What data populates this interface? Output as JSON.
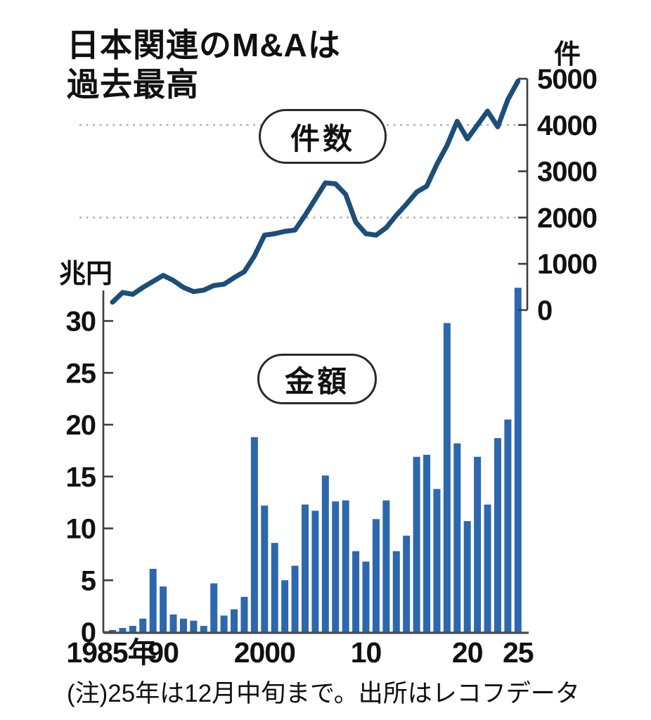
{
  "title": {
    "line1": "日本関連のM&Aは",
    "line2": "過去最高"
  },
  "series": {
    "count_label": "件数",
    "amount_label": "金額"
  },
  "note": "(注)25年は12月中旬まで。出所はレコフデータ",
  "line_axis": {
    "unit": "件",
    "ticks": [
      5000,
      4000,
      3000,
      2000,
      1000,
      0
    ],
    "gridlines": [
      4000,
      2000
    ],
    "max": 5000
  },
  "bar_axis": {
    "unit": "兆円",
    "ticks": [
      30,
      25,
      20,
      15,
      10,
      5,
      0
    ],
    "max": 33.5
  },
  "x_axis": {
    "ticks": [
      {
        "label": "1985年",
        "year": 1985
      },
      {
        "label": "90",
        "year": 1990
      },
      {
        "label": "2000",
        "year": 2000
      },
      {
        "label": "10",
        "year": 2010
      },
      {
        "label": "20",
        "year": 2020
      },
      {
        "label": "25",
        "year": 2025
      }
    ]
  },
  "colors": {
    "bar": "#2d67ad",
    "line": "#1c4e78",
    "axis": "#3d3d3d",
    "baseline": "#4a4a4a",
    "grid": "#b3b3b3",
    "text": "#111111"
  },
  "chart_data": {
    "type": "combo",
    "title": "日本関連のM&Aは過去最高",
    "x": [
      1985,
      1986,
      1987,
      1988,
      1989,
      1990,
      1991,
      1992,
      1993,
      1994,
      1995,
      1996,
      1997,
      1998,
      1999,
      2000,
      2001,
      2002,
      2003,
      2004,
      2005,
      2006,
      2007,
      2008,
      2009,
      2010,
      2011,
      2012,
      2013,
      2014,
      2015,
      2016,
      2017,
      2018,
      2019,
      2020,
      2021,
      2022,
      2023,
      2024,
      2025
    ],
    "series": [
      {
        "name": "件数",
        "type": "line",
        "axis": "right",
        "unit": "件",
        "ylim": [
          0,
          5000
        ],
        "values": [
          170,
          380,
          340,
          490,
          620,
          750,
          640,
          490,
          400,
          430,
          530,
          560,
          700,
          830,
          1170,
          1620,
          1650,
          1700,
          1730,
          2050,
          2400,
          2750,
          2730,
          2500,
          1900,
          1650,
          1620,
          1780,
          2050,
          2290,
          2550,
          2680,
          3150,
          3560,
          4080,
          3700,
          4000,
          4300,
          3960,
          4550,
          4950
        ]
      },
      {
        "name": "金額",
        "type": "bar",
        "axis": "left",
        "unit": "兆円",
        "ylim": [
          0,
          33.5
        ],
        "values": [
          0.2,
          0.4,
          0.6,
          1.3,
          6.1,
          4.4,
          1.7,
          1.3,
          1.1,
          0.6,
          4.7,
          1.6,
          2.2,
          3.4,
          18.8,
          12.2,
          8.6,
          5.0,
          6.4,
          12.3,
          11.7,
          15.1,
          12.6,
          12.7,
          7.8,
          6.8,
          10.9,
          12.7,
          7.8,
          9.3,
          16.9,
          17.1,
          13.8,
          29.8,
          18.2,
          10.7,
          16.9,
          12.3,
          18.7,
          20.5,
          33.2
        ]
      }
    ],
    "x_tick_labels": [
      "1985年",
      "90",
      "2000",
      "10",
      "20",
      "25"
    ],
    "grid": "dashed horizontal at 2000 and 4000 (right axis)",
    "legend_position": "inline-pills",
    "note": "(注)25年は12月中旬まで。出所はレコフデータ"
  }
}
